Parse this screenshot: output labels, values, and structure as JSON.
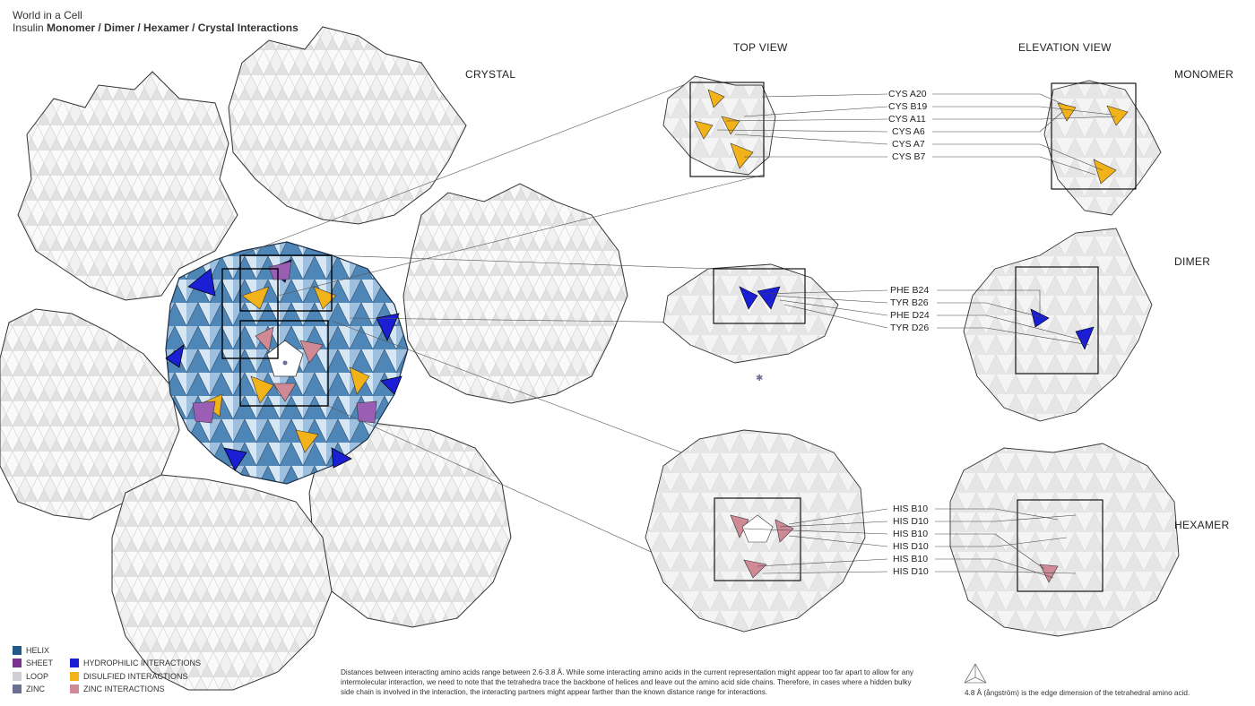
{
  "header": {
    "line1": "World in a Cell",
    "line2_prefix": "Insulin ",
    "line2_bold": "Monomer / Dimer / Hexamer / Crystal Interactions"
  },
  "section_labels": {
    "crystal": "CRYSTAL",
    "top_view": "TOP VIEW",
    "elevation_view": "ELEVATION VIEW",
    "monomer": "MONOMER",
    "dimer": "DIMER",
    "hexamer": "HEXAMER"
  },
  "monomer_residues": [
    "CYS A20",
    "CYS B19",
    "CYS A11",
    "CYS A6",
    "CYS A7",
    "CYS B7"
  ],
  "dimer_residues": [
    "PHE B24",
    "TYR B26",
    "PHE D24",
    "TYR D26"
  ],
  "hexamer_residues": [
    "HIS B10",
    "HIS D10",
    "HIS B10",
    "HIS D10",
    "HIS B10",
    "HIS D10"
  ],
  "legend": {
    "structure": [
      {
        "label": "HELIX",
        "color": "#1f5a8a"
      },
      {
        "label": "SHEET",
        "color": "#7b2f8f"
      },
      {
        "label": "LOOP",
        "color": "#cfcfd4"
      },
      {
        "label": "ZINC",
        "color": "#6b6f93"
      }
    ],
    "interactions": [
      {
        "label": "HYDROPHILIC INTERACTIONS",
        "color": "#1a1fd6"
      },
      {
        "label": "DISULFIED INTERACTIONS",
        "color": "#f2b21a"
      },
      {
        "label": "ZINC INTERACTIONS",
        "color": "#cf8a95"
      }
    ]
  },
  "footnote": "Distances between interacting amino acids range between 2.6-3.8 Å. While some interacting amino acids in the current representation might appear too far apart to allow for any intermolecular interaction, we need to note that the tetrahedra trace the backbone of helices and leave out the amino acid side chains. Therefore, in cases where a hidden bulky side chain is involved in the interaction, the interacting partners might appear farther than the known distance range for interactions.",
  "scale_note": "4.8 Å (ångström) is the edge dimension of the tetrahedral amino acid."
}
